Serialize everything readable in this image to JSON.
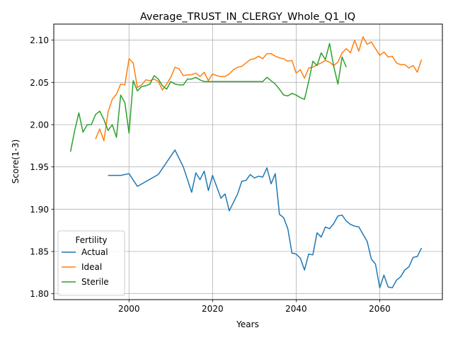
{
  "chart_data": {
    "type": "line",
    "title": "Average_TRUST_IN_CLERGY_Whole_Q1_IQ",
    "xlabel": "Years",
    "ylabel": "Score(1-3)",
    "xlim": [
      1982,
      2075
    ],
    "ylim": [
      1.793,
      2.119
    ],
    "xticks": [
      2000,
      2020,
      2040,
      2060
    ],
    "yticks": [
      1.8,
      1.85,
      1.9,
      1.95,
      2.0,
      2.05,
      2.1
    ],
    "xtick_labels": [
      "2000",
      "2020",
      "2040",
      "2060"
    ],
    "ytick_labels": [
      "1.80",
      "1.85",
      "1.90",
      "1.95",
      "2.00",
      "2.05",
      "2.10"
    ],
    "grid": true,
    "legend": {
      "title": "Fertility",
      "placement": "lower-left"
    },
    "series": [
      {
        "name": "Actual",
        "color": "#1f77b4",
        "x": [
          1995,
          1998,
          2000,
          2002,
          2007,
          2011,
          2013,
          2015,
          2016,
          2017,
          2018,
          2019,
          2020,
          2022,
          2023,
          2024,
          2026,
          2027,
          2028,
          2029,
          2030,
          2031,
          2032,
          2033,
          2034,
          2035,
          2036,
          2037,
          2038,
          2039,
          2040,
          2041,
          2042,
          2043,
          2044,
          2045,
          2046,
          2047,
          2048,
          2049,
          2050,
          2051,
          2052,
          2053,
          2054,
          2055,
          2057,
          2058,
          2059,
          2060,
          2061,
          2062,
          2063,
          2064,
          2065,
          2066,
          2067,
          2068,
          2069,
          2070
        ],
        "y": [
          1.94,
          1.94,
          1.942,
          1.927,
          1.941,
          1.97,
          1.95,
          1.92,
          1.943,
          1.935,
          1.945,
          1.922,
          1.94,
          1.913,
          1.918,
          1.898,
          1.918,
          1.933,
          1.934,
          1.941,
          1.937,
          1.939,
          1.938,
          1.949,
          1.93,
          1.942,
          1.894,
          1.89,
          1.877,
          1.848,
          1.847,
          1.842,
          1.828,
          1.847,
          1.846,
          1.872,
          1.867,
          1.879,
          1.877,
          1.883,
          1.892,
          1.893,
          1.886,
          1.882,
          1.88,
          1.879,
          1.862,
          1.841,
          1.835,
          1.807,
          1.822,
          1.808,
          1.807,
          1.816,
          1.82,
          1.828,
          1.832,
          1.843,
          1.844,
          1.854
        ]
      },
      {
        "name": "Ideal",
        "color": "#ff7f0e",
        "x": [
          1992,
          1993,
          1994,
          1995,
          1996,
          1997,
          1998,
          1999,
          2000,
          2001,
          2002,
          2003,
          2004,
          2005,
          2006,
          2007,
          2008,
          2009,
          2010,
          2011,
          2012,
          2013,
          2014,
          2015,
          2016,
          2017,
          2018,
          2019,
          2020,
          2021,
          2022,
          2023,
          2024,
          2025,
          2026,
          2027,
          2028,
          2029,
          2030,
          2031,
          2032,
          2033,
          2034,
          2035,
          2036,
          2037,
          2038,
          2039,
          2040,
          2041,
          2042,
          2043,
          2044,
          2045,
          2046,
          2047,
          2048,
          2049,
          2050,
          2051,
          2052,
          2053,
          2054,
          2055,
          2056,
          2057,
          2058,
          2059,
          2060,
          2061,
          2062,
          2063,
          2064,
          2065,
          2066,
          2067,
          2068,
          2069,
          2070
        ],
        "y": [
          1.983,
          1.995,
          1.981,
          2.015,
          2.03,
          2.036,
          2.048,
          2.047,
          2.078,
          2.073,
          2.044,
          2.047,
          2.053,
          2.052,
          2.054,
          2.051,
          2.041,
          2.048,
          2.056,
          2.068,
          2.066,
          2.058,
          2.059,
          2.059,
          2.061,
          2.057,
          2.062,
          2.052,
          2.06,
          2.058,
          2.057,
          2.057,
          2.06,
          2.065,
          2.068,
          2.069,
          2.073,
          2.077,
          2.078,
          2.081,
          2.078,
          2.084,
          2.084,
          2.081,
          2.079,
          2.078,
          2.075,
          2.076,
          2.061,
          2.065,
          2.055,
          2.067,
          2.068,
          2.071,
          2.073,
          2.076,
          2.074,
          2.07,
          2.074,
          2.085,
          2.09,
          2.085,
          2.1,
          2.087,
          2.104,
          2.095,
          2.098,
          2.09,
          2.082,
          2.086,
          2.08,
          2.081,
          2.073,
          2.071,
          2.071,
          2.067,
          2.07,
          2.062,
          2.077
        ]
      },
      {
        "name": "Sterile",
        "color": "#2ca02c",
        "x": [
          1986,
          1987,
          1988,
          1989,
          1990,
          1991,
          1992,
          1993,
          1994,
          1995,
          1996,
          1997,
          1998,
          1999,
          2000,
          2001,
          2002,
          2003,
          2004,
          2005,
          2006,
          2007,
          2008,
          2009,
          2010,
          2011,
          2012,
          2013,
          2014,
          2015,
          2016,
          2017,
          2018,
          2019,
          2020,
          2021,
          2022,
          2023,
          2024,
          2025,
          2026,
          2027,
          2028,
          2029,
          2030,
          2031,
          2032,
          2033,
          2034,
          2035,
          2036,
          2037,
          2038,
          2039,
          2040,
          2041,
          2042,
          2043,
          2044,
          2045,
          2046,
          2047,
          2048,
          2049,
          2050,
          2051,
          2052
        ],
        "y": [
          1.968,
          1.993,
          2.014,
          1.991,
          2.0,
          2.0,
          2.012,
          2.016,
          2.006,
          1.993,
          2.0,
          1.985,
          2.035,
          2.026,
          1.99,
          2.052,
          2.04,
          2.045,
          2.046,
          2.048,
          2.058,
          2.054,
          2.046,
          2.042,
          2.051,
          2.048,
          2.047,
          2.047,
          2.054,
          2.054,
          2.056,
          2.053,
          2.051,
          2.051,
          2.051,
          2.051,
          2.051,
          2.051,
          2.051,
          2.051,
          2.051,
          2.051,
          2.051,
          2.051,
          2.051,
          2.051,
          2.051,
          2.056,
          2.052,
          2.048,
          2.042,
          2.035,
          2.034,
          2.037,
          2.035,
          2.032,
          2.03,
          2.051,
          2.075,
          2.07,
          2.085,
          2.077,
          2.096,
          2.069,
          2.048,
          2.08,
          2.068
        ]
      }
    ]
  }
}
